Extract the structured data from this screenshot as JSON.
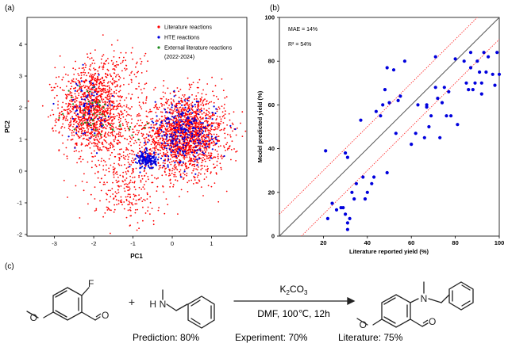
{
  "panel_labels": {
    "a": "(a)",
    "b": "(b)",
    "c": "(c)"
  },
  "colors": {
    "literature": "#ff0000",
    "hte": "#0000dd",
    "external": "#1e8a1e",
    "diagonal": "#555555",
    "band": "#ff3333"
  },
  "chart_data": [
    {
      "type": "scatter",
      "xlabel": "PC1",
      "ylabel": "PC2",
      "xlim": [
        -3.7,
        1.9
      ],
      "ylim": [
        -2.05,
        4.85
      ],
      "xticks": [
        -3,
        -2,
        -1,
        0,
        1
      ],
      "yticks": [
        -2,
        -1,
        0,
        1,
        2,
        3,
        4
      ],
      "legend": {
        "placement": "top-right",
        "entries": [
          {
            "key": "literature",
            "label": "Literature reactions"
          },
          {
            "key": "hte",
            "label": "HTE reactions"
          },
          {
            "key": "external",
            "label": "External literature reactions"
          }
        ],
        "note": "(2022-2024)"
      },
      "clusters": [
        {
          "series": "literature",
          "cx": -2.05,
          "cy": 1.9,
          "sx": 0.4,
          "sy": 0.65,
          "n": 1100
        },
        {
          "series": "literature",
          "cx": 0.35,
          "cy": 1.15,
          "sx": 0.5,
          "sy": 0.62,
          "n": 1800
        },
        {
          "series": "literature",
          "cx": -1.25,
          "cy": 0.5,
          "sx": 0.45,
          "sy": 0.85,
          "n": 380
        },
        {
          "series": "literature",
          "cx": -1.6,
          "cy": 3.1,
          "sx": 0.55,
          "sy": 0.45,
          "n": 160
        },
        {
          "series": "literature",
          "cx": -1.0,
          "cy": -0.9,
          "sx": 0.45,
          "sy": 0.4,
          "n": 110
        },
        {
          "series": "hte",
          "cx": -0.65,
          "cy": 0.35,
          "sx": 0.12,
          "sy": 0.14,
          "n": 140
        },
        {
          "series": "hte",
          "cx": 0.3,
          "cy": 1.15,
          "sx": 0.4,
          "sy": 0.5,
          "n": 260
        },
        {
          "series": "hte",
          "cx": -2.1,
          "cy": 2.0,
          "sx": 0.3,
          "sy": 0.5,
          "n": 70
        },
        {
          "series": "external",
          "cx": -2.1,
          "cy": 1.95,
          "sx": 0.3,
          "sy": 0.4,
          "n": 40
        },
        {
          "series": "external",
          "cx": -1.1,
          "cy": 1.3,
          "sx": 0.3,
          "sy": 0.3,
          "n": 10
        }
      ]
    },
    {
      "type": "scatter",
      "xlabel": "Literature reported yield (%)",
      "ylabel": "Model predicted yield (%)",
      "xlim": [
        0,
        100
      ],
      "ylim": [
        0,
        100
      ],
      "xticks": [
        20,
        40,
        60,
        80,
        100
      ],
      "yticks": [
        0,
        20,
        40,
        60,
        80,
        100
      ],
      "annotations": [
        "MAE = 14%",
        "R² = 54%"
      ],
      "reference_lines": [
        {
          "kind": "parity",
          "offset": 0,
          "style": "solid"
        },
        {
          "kind": "band",
          "offset": 10,
          "style": "dotted"
        },
        {
          "kind": "band",
          "offset": -10,
          "style": "dotted"
        }
      ],
      "points": [
        [
          21,
          39
        ],
        [
          22,
          8
        ],
        [
          24,
          15
        ],
        [
          26,
          12
        ],
        [
          28,
          13
        ],
        [
          29,
          13
        ],
        [
          30,
          10
        ],
        [
          30,
          38
        ],
        [
          31,
          36
        ],
        [
          31,
          6
        ],
        [
          31,
          3
        ],
        [
          32,
          8
        ],
        [
          33,
          20
        ],
        [
          34,
          17
        ],
        [
          35,
          24
        ],
        [
          37,
          53
        ],
        [
          38,
          27
        ],
        [
          39,
          17
        ],
        [
          40,
          20
        ],
        [
          42,
          24
        ],
        [
          43,
          27
        ],
        [
          44,
          57
        ],
        [
          46,
          55
        ],
        [
          47,
          60
        ],
        [
          48,
          67
        ],
        [
          49,
          29
        ],
        [
          49,
          77
        ],
        [
          50,
          61
        ],
        [
          52,
          76
        ],
        [
          53,
          47
        ],
        [
          54,
          62
        ],
        [
          55,
          64
        ],
        [
          57,
          80
        ],
        [
          60,
          42
        ],
        [
          63,
          60
        ],
        [
          66,
          45
        ],
        [
          67,
          59
        ],
        [
          68,
          50
        ],
        [
          69,
          55
        ],
        [
          71,
          82
        ],
        [
          71,
          68
        ],
        [
          72,
          63
        ],
        [
          73,
          45
        ],
        [
          74,
          61
        ],
        [
          75,
          68
        ],
        [
          77,
          66
        ],
        [
          78,
          55
        ],
        [
          80,
          81
        ],
        [
          84,
          80
        ],
        [
          86,
          67
        ],
        [
          87,
          84
        ],
        [
          87,
          77
        ],
        [
          88,
          67
        ],
        [
          89,
          70
        ],
        [
          90,
          80
        ],
        [
          91,
          75
        ],
        [
          92,
          70
        ],
        [
          92,
          65
        ],
        [
          93,
          84
        ],
        [
          94,
          75
        ],
        [
          95,
          82
        ],
        [
          97,
          74
        ],
        [
          98,
          69
        ],
        [
          99,
          84
        ],
        [
          100,
          74
        ],
        [
          67,
          60
        ],
        [
          81,
          51
        ],
        [
          76,
          55
        ],
        [
          62,
          47
        ],
        [
          85,
          70
        ]
      ]
    }
  ],
  "reaction": {
    "reagent_1": {
      "label_F": "F",
      "label_O_methoxy": "O",
      "label_O_aldehyde": "O"
    },
    "plus": "+",
    "reagent_2": {
      "label_N": "N",
      "label_H": "H"
    },
    "conditions_top_base": "K",
    "conditions_top_sub1": "2",
    "conditions_top_mid": "CO",
    "conditions_top_sub2": "3",
    "conditions_bottom": "DMF, 100℃, 12h",
    "product": {
      "label_N": "N",
      "label_O_methoxy": "O",
      "label_O_aldehyde": "O"
    },
    "results": [
      {
        "label": "Prediction: 80%"
      },
      {
        "label": "Experiment: 70%"
      },
      {
        "label": "Literature: 75%"
      }
    ]
  }
}
